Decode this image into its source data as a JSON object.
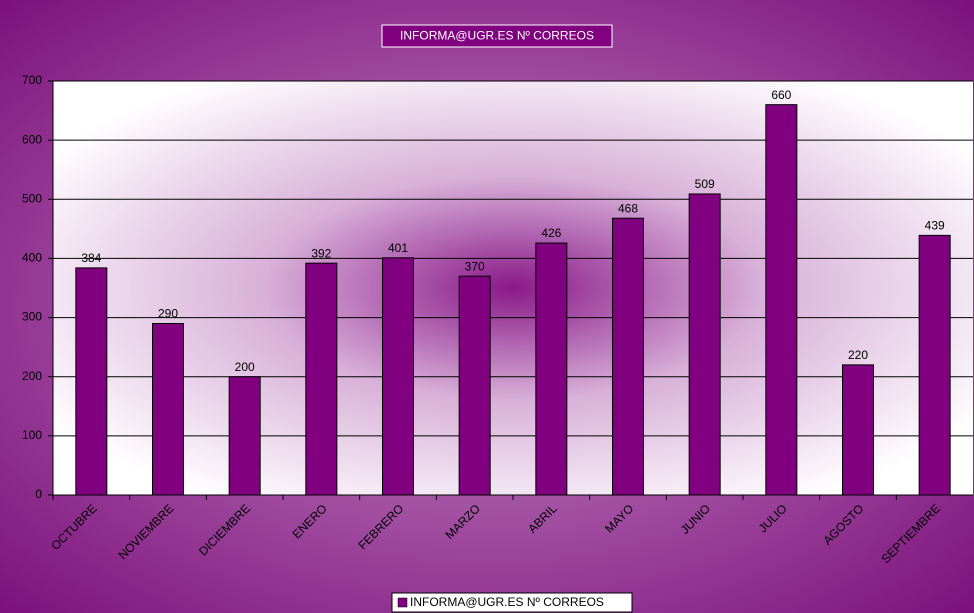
{
  "chart_data": {
    "type": "bar",
    "title": "INFORMA@UGR.ES Nº CORREOS",
    "categories": [
      "OCTUBRE",
      "NOVIEMBRE",
      "DICIEMBRE",
      "ENERO",
      "FEBRERO",
      "MARZO",
      "ABRIL",
      "MAYO",
      "JUNIO",
      "JULIO",
      "AGOSTO",
      "SEPTIEMBRE"
    ],
    "series": [
      {
        "name": "INFORMA@UGR.ES Nº CORREOS",
        "color": "#800080",
        "values": [
          384,
          290,
          200,
          392,
          401,
          370,
          426,
          468,
          509,
          660,
          220,
          439
        ]
      }
    ],
    "ylim": [
      0,
      700
    ],
    "yticks": [
      0,
      100,
      200,
      300,
      400,
      500,
      600,
      700
    ],
    "grid": true,
    "legend": "bottom"
  }
}
